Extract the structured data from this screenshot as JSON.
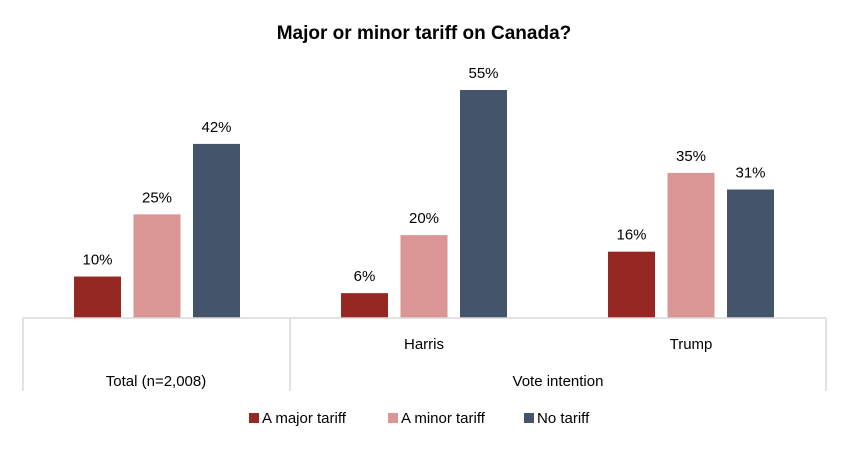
{
  "chart_data": {
    "type": "bar",
    "title": "Major or minor tariff on Canada?",
    "categories": [
      "",
      "Harris",
      "Trump"
    ],
    "category_groups": [
      {
        "label": "Total (n=2,008)",
        "categories": [
          ""
        ]
      },
      {
        "label": "Vote intention",
        "categories": [
          "Harris",
          "Trump"
        ]
      }
    ],
    "series": [
      {
        "name": "A major tariff",
        "color": "#962824",
        "values": [
          10,
          6,
          16
        ]
      },
      {
        "name": "A minor tariff",
        "color": "#DA9694",
        "values": [
          25,
          20,
          35
        ]
      },
      {
        "name": "No tariff",
        "color": "#44546A",
        "values": [
          42,
          55,
          31
        ]
      }
    ],
    "value_suffix": "%",
    "xlabel": "",
    "ylabel": "",
    "ylim": [
      0,
      55
    ],
    "grid": false,
    "legend": "bottom"
  }
}
